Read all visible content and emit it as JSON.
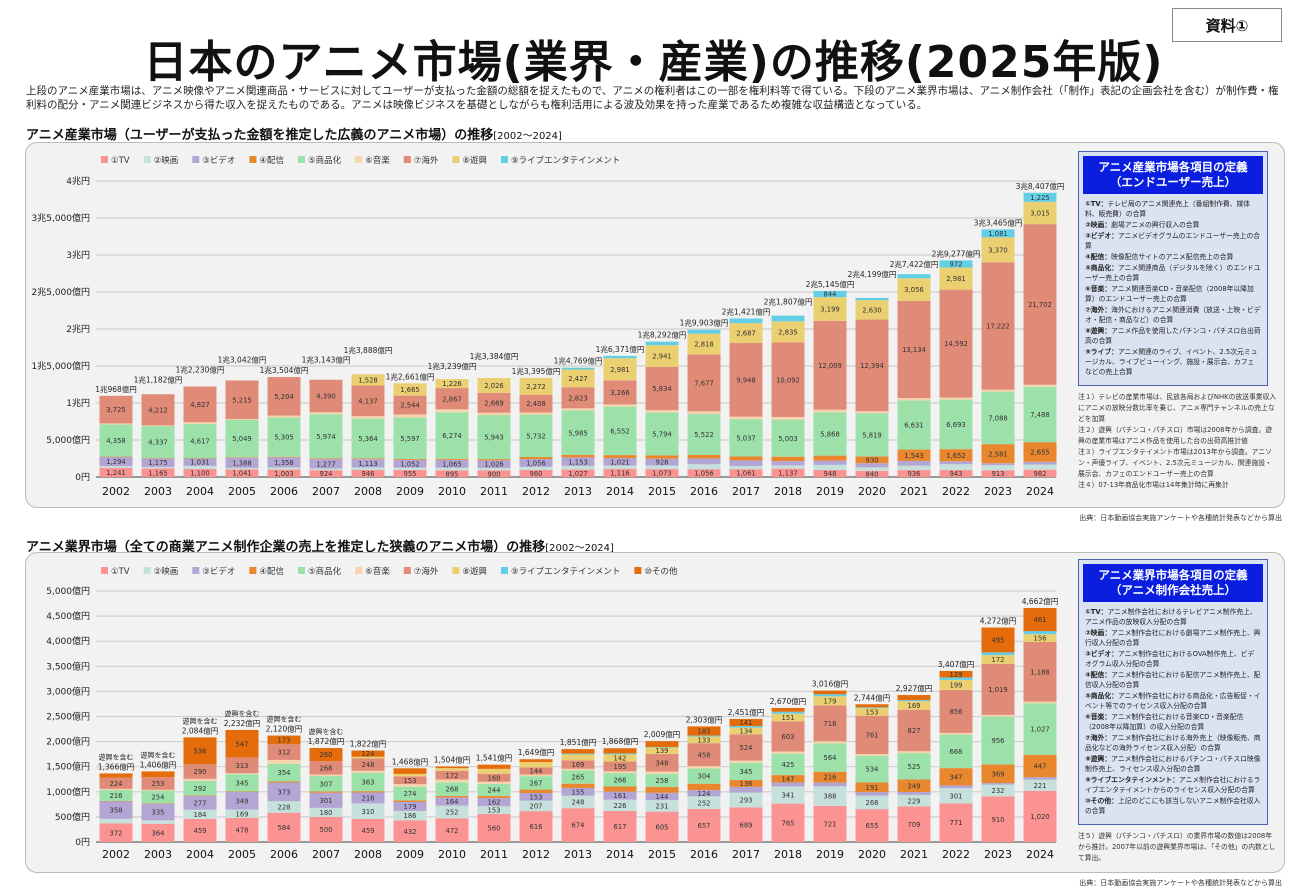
{
  "title": "日本のアニメ市場(業界・産業)の推移(2025年版)",
  "badge": "資料①",
  "intro": "上段のアニメ産業市場は、アニメ映像やアニメ関連商品・サービスに対してユーザーが支払った金額の総額を捉えたもので、アニメの権利者はこの一部を権利料等で得ている。下段のアニメ業界市場は、アニメ制作会社（「制作」表記の企画会社を含む）が制作費・権利料の配分・アニメ関連ビジネスから得た収入を捉えたものである。アニメは映像ビジネスを基礎としながらも権利活用による波及効果を持った産業であるため複雑な収益構造となっている。",
  "source": "出典：日本動画協会実施アンケートや各種統計発表などから算出",
  "colors": {
    "TV": "#fb9393",
    "映画": "#c6e1dc",
    "ビデオ": "#b3a6d4",
    "配信": "#e9872f",
    "商品化": "#9ce0aa",
    "音楽": "#f6d5ac",
    "海外": "#e08b78",
    "遊興": "#ebd072",
    "ライブ": "#62cfe6",
    "その他": "#e46c0a"
  },
  "industry": {
    "title": "アニメ産業市場（ユーザーが支払った金額を推定した広義のアニメ市場）の推移",
    "range": "[2002～2024]",
    "def_title": "アニメ産業市場各項目の定義\n（エンドユーザー売上）",
    "definitions": [
      {
        "term": "①TV：",
        "desc": "テレビ局のアニメ関連売上（番組制作費、媒体料、販売費）の合算"
      },
      {
        "term": "②映画：",
        "desc": "劇場アニメの興行収入の合算"
      },
      {
        "term": "③ビデオ：",
        "desc": "アニメビデオグラムのエンドユーザー売上の合算"
      },
      {
        "term": "④配信：",
        "desc": "映像配信サイトのアニメ配信売上の合算"
      },
      {
        "term": "⑤商品化：",
        "desc": "アニメ関連商品（デジタルを除く）のエンドユーザー売上の合算"
      },
      {
        "term": "⑥音楽：",
        "desc": "アニメ関連音楽CD・音楽配信（2008年以降加算）のエンドユーザー売上の合算"
      },
      {
        "term": "⑦海外：",
        "desc": "海外におけるアニメ関連消費（放送・上映・ビデオ・配信・商品など）の合算"
      },
      {
        "term": "⑧遊興：",
        "desc": "アニメ作品を使用したパチンコ・パチスロ台出荷高の合算"
      },
      {
        "term": "⑨ライブ：",
        "desc": "アニメ関連のライブ、イベント、2.5次元ミュージカル、ライブビューイング、施設・展示会、カフェなどの売上合算"
      }
    ],
    "notes": [
      "注１）テレビの産業市場は、民放各局およびNHKの放送事業収入にアニメの放映分数比率を乗じ、アニメ専門チャンネルの売上などを加算",
      "注２）遊興（パチンコ・パチスロ）市場は2008年から調査。遊興の産業市場はアニメ作品を使用した台の出荷高推計値",
      "注３）ライブエンタテイメント市場は2013年から調査。アニソン・声優ライブ、イベント、2.5次元ミュージカル、関連施設・展示会、カフェのエンドユーザー売上の合算",
      "注４）07-13年商品化市場は14年集計時に再集計"
    ]
  },
  "business": {
    "title": "アニメ業界市場（全ての商業アニメ制作企業の売上を推定した狭義のアニメ市場）の推移",
    "range": "[2002～2024]",
    "def_title": "アニメ業界市場各項目の定義\n（アニメ制作会社売上）",
    "definitions": [
      {
        "term": "①TV：",
        "desc": "アニメ制作会社におけるテレビアニメ制作売上、アニメ作品の放映収入分配の合算"
      },
      {
        "term": "②映画：",
        "desc": "アニメ制作会社における劇場アニメ制作売上、興行収入分配の合算"
      },
      {
        "term": "③ビデオ：",
        "desc": "アニメ制作会社におけるOVA制作売上、ビデオグラム収入分配の合算"
      },
      {
        "term": "④配信：",
        "desc": "アニメ制作会社における配信アニメ制作売上、配信収入分配の合算"
      },
      {
        "term": "⑤商品化：",
        "desc": "アニメ制作会社における商品化・広告販促・イベント等でのライセンス収入分配の合算"
      },
      {
        "term": "⑥音楽：",
        "desc": "アニメ制作会社における音楽CD・音楽配信（2008年以降加算）の収入分配の合算"
      },
      {
        "term": "⑦海外：",
        "desc": "アニメ制作会社における海外売上（映像販売、商品化などの海外ライセンス収入分配）の合算"
      },
      {
        "term": "⑧遊興：",
        "desc": "アニメ制作会社におけるパチンコ・パチスロ映像制作売上、ライセンス収入分配の合算"
      },
      {
        "term": "⑨ライブエンタテインメント：",
        "desc": "アニメ制作会社におけるライブエンタテイメントからのライセンス収入分配の合算"
      },
      {
        "term": "⑩その他：",
        "desc": "上記のどこにも該当しないアニメ制作会社収入の合算"
      }
    ],
    "notes": [
      "注５）遊興（パチンコ・パチスロ）の業界市場の数値は2008年から推計。2007年以前の遊興業界市場は、「その他」の内数として算出。"
    ]
  },
  "chart_data": [
    {
      "type": "bar",
      "stacked": true,
      "unit": "億円",
      "categories": [
        "2002",
        "2003",
        "2004",
        "2005",
        "2006",
        "2007",
        "2008",
        "2009",
        "2010",
        "2011",
        "2012",
        "2013",
        "2014",
        "2015",
        "2016",
        "2017",
        "2018",
        "2019",
        "2020",
        "2021",
        "2022",
        "2023",
        "2024"
      ],
      "ylim": [
        0,
        40000
      ],
      "yticks": [
        "0円",
        "5,000億円",
        "1兆円",
        "1兆5,000億円",
        "2兆円",
        "2兆5,000億円",
        "3兆円",
        "3兆5,000億円",
        "4兆円"
      ],
      "legend_position": "top-left",
      "grid": true,
      "series": [
        {
          "name": "①TV",
          "key": "TV",
          "values": [
            1241,
            1165,
            1100,
            1041,
            1003,
            924,
            946,
            955,
            895,
            900,
            960,
            1027,
            1116,
            1073,
            1056,
            1061,
            1137,
            948,
            840,
            936,
            943,
            913,
            982
          ]
        },
        {
          "name": "②映画",
          "key": "映画",
          "values": [
            210,
            192,
            402,
            188,
            289,
            219,
            348,
            311,
            357,
            327,
            412,
            470,
            417,
            477,
            663,
            410,
            426,
            692,
            456,
            602,
            785,
            681,
            698
          ]
        },
        {
          "name": "③ビデオ",
          "key": "ビデオ",
          "values": [
            1294,
            1175,
            1031,
            1388,
            1358,
            1277,
            1113,
            1052,
            1065,
            1026,
            1056,
            1153,
            1021,
            928,
            788,
            765,
            587,
            563,
            564,
            632,
            385,
            262,
            376
          ]
        },
        {
          "name": "④配信",
          "key": "配信",
          "values": [
            2,
            10,
            18,
            41,
            84,
            96,
            102,
            123,
            149,
            168,
            272,
            348,
            408,
            437,
            478,
            540,
            595,
            685,
            930,
            1543,
            1652,
            2581,
            2655
          ]
        },
        {
          "name": "⑤商品化",
          "key": "商品化",
          "values": [
            4358,
            4337,
            4617,
            5049,
            5305,
            5974,
            5364,
            5597,
            6274,
            5943,
            5732,
            5985,
            6552,
            5794,
            5522,
            5037,
            5003,
            5868,
            5819,
            6631,
            6693,
            7088,
            7488
          ]
        },
        {
          "name": "⑥音楽",
          "key": "音楽",
          "values": [
            138,
            91,
            235,
            120,
            261,
            263,
            350,
            414,
            406,
            325,
            283,
            296,
            292,
            324,
            369,
            344,
            358,
            337,
            276,
            317,
            274,
            267,
            266
          ]
        },
        {
          "name": "⑦海外",
          "key": "海外",
          "values": [
            3725,
            4212,
            4827,
            5215,
            5204,
            4390,
            4137,
            2544,
            2867,
            2669,
            2408,
            2823,
            3266,
            5834,
            7677,
            9948,
            10092,
            12009,
            12394,
            13134,
            14592,
            17222,
            21702
          ]
        },
        {
          "name": "⑧遊興",
          "key": "遊興",
          "values": [
            0,
            0,
            0,
            0,
            0,
            0,
            1528,
            1665,
            1226,
            2026,
            2272,
            2427,
            2981,
            2941,
            2818,
            2687,
            2835,
            3199,
            2630,
            3056,
            2981,
            3370,
            3015
          ]
        },
        {
          "name": "⑨ライブエンタテインメント",
          "key": "ライブ",
          "values": [
            0,
            0,
            0,
            0,
            0,
            0,
            0,
            0,
            0,
            0,
            0,
            240,
            318,
            484,
            532,
            629,
            774,
            844,
            290,
            571,
            972,
            1081,
            1225
          ]
        }
      ],
      "totals": [
        "1兆968億円",
        "1兆1,182億円",
        "1兆2,230億円",
        "1兆3,042億円",
        "1兆3,504億円",
        "1兆3,143億円",
        "1兆3,888億円",
        "1兆2,661億円",
        "1兆3,239億円",
        "1兆3,384億円",
        "1兆3,395億円",
        "1兆4,769億円",
        "1兆6,371億円",
        "1兆8,292億円",
        "1兆9,903億円",
        "2兆1,421億円",
        "2兆1,807億円",
        "2兆5,145億円",
        "2兆4,199億円",
        "2兆7,422億円",
        "2兆9,277億円",
        "3兆3,465億円",
        "3兆8,407億円"
      ]
    },
    {
      "type": "bar",
      "stacked": true,
      "unit": "億円",
      "categories": [
        "2002",
        "2003",
        "2004",
        "2005",
        "2006",
        "2007",
        "2008",
        "2009",
        "2010",
        "2011",
        "2012",
        "2013",
        "2014",
        "2015",
        "2016",
        "2017",
        "2018",
        "2019",
        "2020",
        "2021",
        "2022",
        "2023",
        "2024"
      ],
      "ylim": [
        0,
        5000
      ],
      "yticks": [
        "0円",
        "500億円",
        "1,000億円",
        "1,500億円",
        "2,000億円",
        "2,500億円",
        "3,000億円",
        "3,500億円",
        "4,000億円",
        "4,500億円",
        "5,000億円"
      ],
      "legend_position": "top-left",
      "grid": true,
      "annotation": "遊興を含む",
      "annotated_years": [
        "2002",
        "2003",
        "2004",
        "2005",
        "2006",
        "2007"
      ],
      "series": [
        {
          "name": "①TV",
          "key": "TV",
          "values": [
            372,
            364,
            459,
            478,
            584,
            500,
            459,
            432,
            472,
            560,
            616,
            674,
            617,
            605,
            657,
            689,
            765,
            721,
            655,
            709,
            771,
            910,
            1020
          ]
        },
        {
          "name": "②映画",
          "key": "映画",
          "values": [
            88,
            68,
            184,
            169,
            228,
            180,
            310,
            186,
            252,
            153,
            207,
            248,
            226,
            231,
            252,
            293,
            341,
            388,
            268,
            229,
            301,
            232,
            221
          ]
        },
        {
          "name": "③ビデオ",
          "key": "ビデオ",
          "values": [
            358,
            335,
            277,
            349,
            373,
            301,
            218,
            179,
            164,
            162,
            153,
            155,
            161,
            144,
            124,
            116,
            80,
            75,
            71,
            58,
            53,
            32,
            49
          ]
        },
        {
          "name": "④配信",
          "key": "配信",
          "values": [
            1,
            3,
            5,
            10,
            21,
            25,
            26,
            31,
            31,
            40,
            68,
            85,
            102,
            118,
            128,
            136,
            147,
            216,
            191,
            249,
            347,
            369,
            447
          ]
        },
        {
          "name": "⑤商品化",
          "key": "商品化",
          "values": [
            216,
            254,
            292,
            345,
            354,
            307,
            363,
            274,
            268,
            244,
            267,
            265,
            266,
            258,
            304,
            345,
            425,
            564,
            534,
            525,
            668,
            956,
            1027
          ]
        },
        {
          "name": "⑥音楽",
          "key": "音楽",
          "values": [
            24,
            16,
            41,
            21,
            75,
            31,
            43,
            51,
            58,
            41,
            33,
            32,
            36,
            48,
            45,
            42,
            44,
            41,
            34,
            39,
            34,
            33,
            32
          ]
        },
        {
          "name": "⑦海外",
          "key": "海外",
          "values": [
            224,
            253,
            290,
            313,
            312,
            268,
            248,
            153,
            172,
            160,
            144,
            169,
            195,
            348,
            458,
            524,
            603,
            718,
            761,
            827,
            856,
            1019,
            1188
          ]
        },
        {
          "name": "⑧遊興",
          "key": "遊興",
          "values": [
            0,
            0,
            0,
            0,
            0,
            0,
            31,
            50,
            55,
            97,
            105,
            116,
            142,
            139,
            133,
            134,
            151,
            179,
            153,
            169,
            199,
            172,
            156
          ]
        },
        {
          "name": "⑨ライブエンタテインメント",
          "key": "ライブ",
          "values": [
            0,
            0,
            0,
            0,
            0,
            0,
            0,
            0,
            0,
            0,
            0,
            16,
            19,
            2,
            19,
            31,
            39,
            42,
            15,
            21,
            49,
            54,
            61
          ]
        },
        {
          "name": "⑩その他",
          "key": "その他",
          "values": [
            83,
            113,
            536,
            547,
            173,
            260,
            124,
            112,
            32,
            84,
            56,
            91,
            104,
            116,
            183,
            141,
            75,
            72,
            62,
            101,
            129,
            495,
            461
          ]
        }
      ],
      "totals": [
        "1,366億円",
        "1,406億円",
        "2,084億円",
        "2,232億円",
        "2,120億円",
        "1,872億円",
        "1,822億円",
        "1,468億円",
        "1,504億円",
        "1,541億円",
        "1,649億円",
        "1,851億円",
        "1,868億円",
        "2,009億円",
        "2,303億円",
        "2,451億円",
        "2,670億円",
        "3,016億円",
        "2,744億円",
        "2,927億円",
        "3,407億円",
        "4,272億円",
        "4,662億円"
      ]
    }
  ]
}
